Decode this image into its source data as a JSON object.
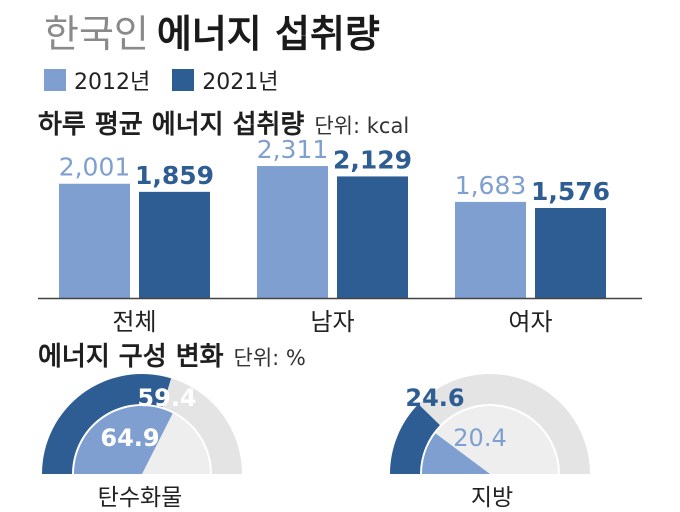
{
  "header": {
    "title_light": "한국인",
    "title_bold": "에너지 섭취량"
  },
  "legend": [
    {
      "label": "2012년",
      "color": "#7f9fd0"
    },
    {
      "label": "2021년",
      "color": "#2e5d93"
    }
  ],
  "section1": {
    "title": "하루 평균 에너지 섭취량",
    "unit": "단위: kcal"
  },
  "section2": {
    "title": "에너지 구성 변화",
    "unit": "단위: %"
  },
  "chart_data": [
    {
      "type": "bar",
      "categories": [
        "전체",
        "남자",
        "여자"
      ],
      "series": [
        {
          "name": "2012년",
          "values": [
            2001,
            2311,
            1683
          ],
          "labels": [
            "2,001",
            "2,311",
            "1,683"
          ]
        },
        {
          "name": "2021년",
          "values": [
            1859,
            2129,
            1576
          ],
          "labels": [
            "1,859",
            "2,129",
            "1,576"
          ]
        }
      ],
      "title": "하루 평균 에너지 섭취량",
      "unit": "단위: kcal"
    },
    {
      "type": "pie",
      "subtype": "semicircle-gauge",
      "title": "에너지 구성 변화",
      "unit": "단위: %",
      "gauges": [
        {
          "label": "탄수화물",
          "series": [
            {
              "name": "2021년",
              "value": 59.4,
              "text": "59.4"
            },
            {
              "name": "2012년",
              "value": 64.9,
              "text": "64.9"
            }
          ]
        },
        {
          "label": "지방",
          "series": [
            {
              "name": "2021년",
              "value": 24.6,
              "text": "24.6"
            },
            {
              "name": "2012년",
              "value": 20.4,
              "text": "20.4"
            }
          ]
        }
      ]
    }
  ],
  "colors": {
    "light": "#7f9fd0",
    "dark": "#2e5d93",
    "track": "#e4e4e4",
    "axis": "#444444"
  }
}
